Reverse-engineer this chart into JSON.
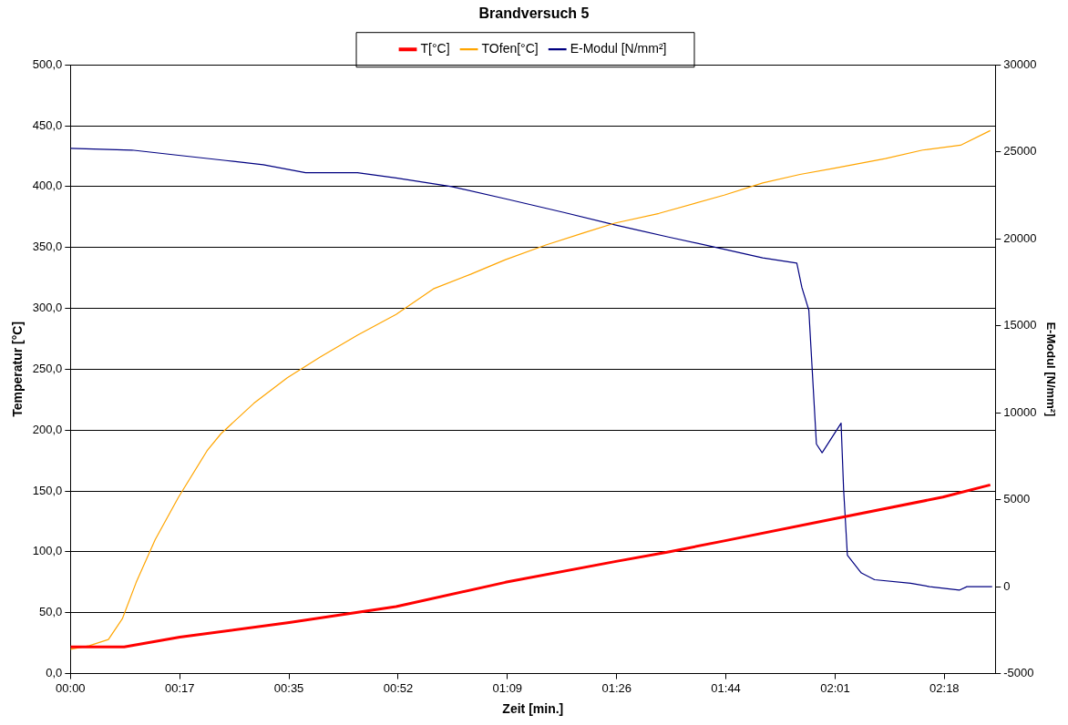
{
  "chart_data": {
    "type": "line",
    "title": "Brandversuch 5",
    "xlabel": "Zeit [min.]",
    "ylabel": "Temperatur [°C]",
    "y2label": "E-Modul [N/mm²]",
    "xlim": [
      0,
      146.3
    ],
    "xticks": [
      {
        "value": 0,
        "label": "00:00"
      },
      {
        "value": 17.28,
        "label": "00:17"
      },
      {
        "value": 34.56,
        "label": "00:35"
      },
      {
        "value": 51.84,
        "label": "00:52"
      },
      {
        "value": 69.12,
        "label": "01:09"
      },
      {
        "value": 86.4,
        "label": "01:26"
      },
      {
        "value": 103.68,
        "label": "01:44"
      },
      {
        "value": 120.96,
        "label": "02:01"
      },
      {
        "value": 138.24,
        "label": "02:18"
      }
    ],
    "ylim": [
      0,
      500
    ],
    "yticks": [
      {
        "value": 0,
        "label": "0,0"
      },
      {
        "value": 50,
        "label": "50,0"
      },
      {
        "value": 100,
        "label": "100,0"
      },
      {
        "value": 150,
        "label": "150,0"
      },
      {
        "value": 200,
        "label": "200,0"
      },
      {
        "value": 250,
        "label": "250,0"
      },
      {
        "value": 300,
        "label": "300,0"
      },
      {
        "value": 350,
        "label": "350,0"
      },
      {
        "value": 400,
        "label": "400,0"
      },
      {
        "value": 450,
        "label": "450,0"
      },
      {
        "value": 500,
        "label": "500,0"
      }
    ],
    "y2lim": [
      -5000,
      30000
    ],
    "y2ticks": [
      -5000,
      0,
      5000,
      10000,
      15000,
      20000,
      25000,
      30000
    ],
    "grid": "y",
    "legend": "top",
    "marker": "none",
    "line_style": "solid",
    "series": [
      {
        "name": "T[°C]",
        "color": "#ff0000",
        "x": [
          0,
          8.5,
          17.3,
          34.6,
          51.5,
          68.8,
          86.1,
          94.6,
          103.4,
          120.7,
          138.0,
          145.5
        ],
        "values": [
          22,
          22,
          30,
          42,
          55,
          75,
          92,
          100,
          109,
          127,
          145,
          155
        ]
      },
      {
        "name": "TOfen[°C]",
        "color": "#ffa500",
        "x": [
          0,
          3,
          6,
          8.2,
          10.4,
          13.4,
          17.1,
          21.6,
          23.8,
          29,
          34.3,
          39.5,
          45.4,
          51.5,
          57.4,
          63.3,
          68.8,
          75.2,
          81.2,
          86.1,
          93.1,
          103.4,
          109.5,
          115.4,
          120.7,
          128.9,
          134.8,
          140.8,
          145.5
        ],
        "values": [
          20,
          23,
          28,
          45,
          75,
          110,
          145,
          183,
          197,
          222,
          243,
          260,
          278,
          295,
          316,
          328,
          340,
          352,
          362,
          370,
          378,
          393,
          403,
          410,
          415,
          423,
          430,
          434,
          446
        ]
      },
      {
        "name": "E-Modul [N/mm²]",
        "color": "#000080",
        "axis": "y2",
        "x": [
          0,
          9.7,
          17.1,
          24.6,
          30.5,
          37.2,
          45.4,
          51.5,
          60.3,
          68.8,
          78.2,
          86.1,
          94.6,
          103.4,
          109.5,
          114.9,
          115.7,
          116.8,
          118.0,
          118.9,
          121.9,
          122.3,
          122.9,
          125.1,
          127.2,
          132.9,
          135.9,
          140.6,
          141.8,
          145.8
        ],
        "values": [
          25200,
          25100,
          24800,
          24500,
          24260,
          23800,
          23800,
          23500,
          23000,
          22300,
          21500,
          20800,
          20100,
          19400,
          18900,
          18600,
          17200,
          15900,
          8200,
          7700,
          9400,
          5600,
          1800,
          790,
          400,
          200,
          0,
          -200,
          0,
          0
        ]
      }
    ]
  }
}
